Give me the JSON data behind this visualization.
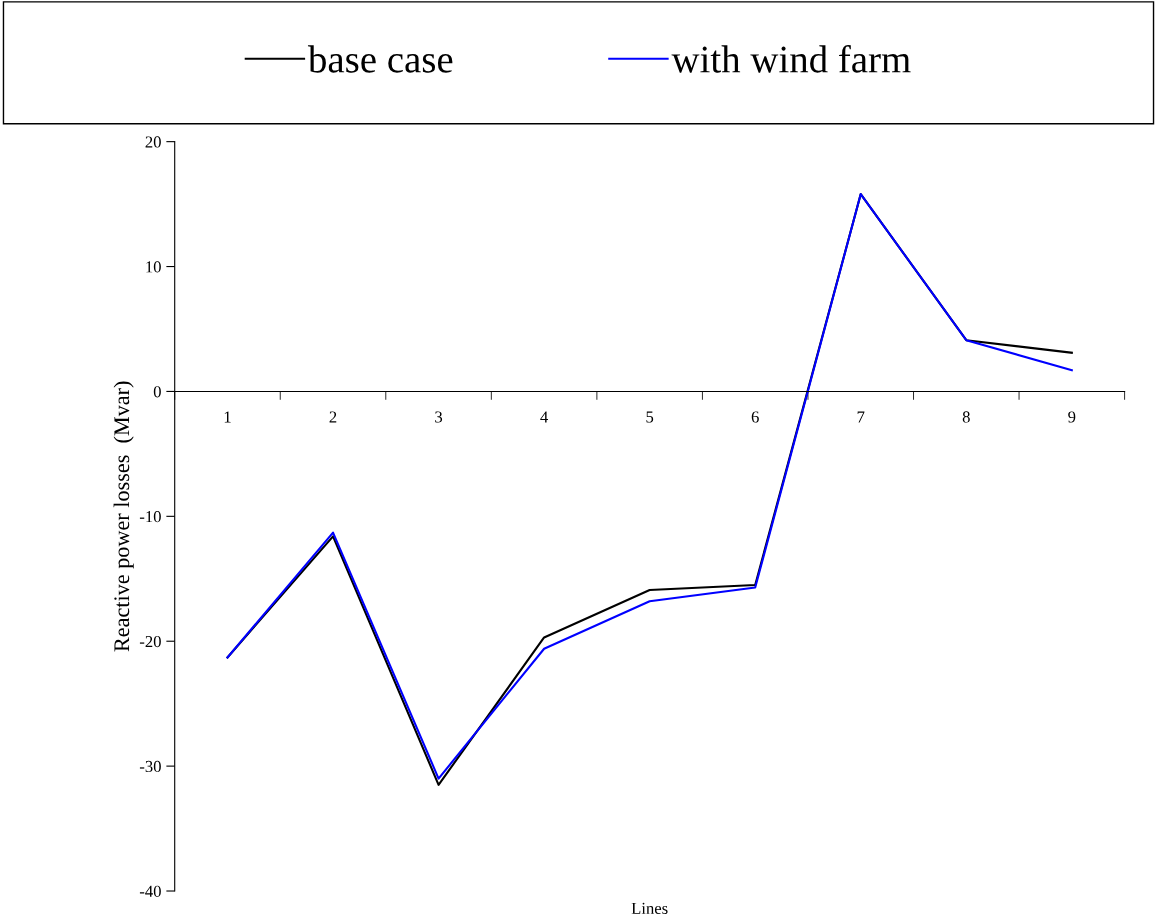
{
  "chart_data": {
    "type": "line",
    "xlabel": "Lines",
    "ylabel": "Reactive power losses  (Mvar)",
    "categories": [
      "1",
      "2",
      "3",
      "4",
      "5",
      "6",
      "7",
      "8",
      "9"
    ],
    "series": [
      {
        "name": "base case",
        "color": "#000000",
        "values": [
          -21.3,
          -11.6,
          -31.5,
          -19.7,
          -15.9,
          -15.5,
          15.8,
          4.1,
          3.1
        ]
      },
      {
        "name": "with wind farm",
        "color": "#0000ff",
        "values": [
          -21.3,
          -11.3,
          -31.0,
          -20.6,
          -16.8,
          -15.7,
          15.8,
          4.1,
          1.7
        ]
      }
    ],
    "ylim": [
      -40,
      20
    ],
    "yticks": [
      -40,
      -30,
      -20,
      -10,
      0,
      10,
      20
    ],
    "grid": false,
    "legend": "top",
    "marker": "none",
    "line_style": "solid"
  }
}
